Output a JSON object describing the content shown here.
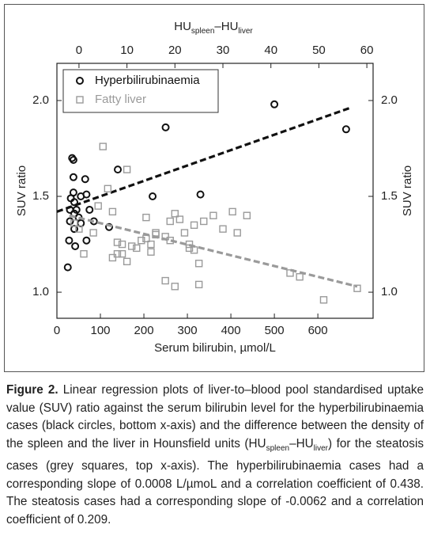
{
  "chart_data": {
    "type": "scatter",
    "xlabel": "Serum bilirubin, µmol/L",
    "x2label": [
      {
        "text": "HU"
      },
      {
        "text": "spleen",
        "sub": true
      },
      {
        "text": "–HU"
      },
      {
        "text": "liver",
        "sub": true
      }
    ],
    "ylabel": "SUV ratio",
    "xlim": [
      0,
      727
    ],
    "xticks": [
      0,
      100,
      200,
      300,
      400,
      500,
      600
    ],
    "x2lim": [
      -4.6,
      61.3
    ],
    "x2ticks": [
      0,
      10,
      20,
      30,
      40,
      50,
      60
    ],
    "ylim": [
      0.864,
      2.194
    ],
    "yticks": [
      {
        "value": 1,
        "label": "1.0"
      },
      {
        "value": 1.5,
        "label": "1.5"
      },
      {
        "value": 2,
        "label": "2.0"
      }
    ],
    "legend": "top-left",
    "series": [
      {
        "name": "Hyperbilirubinaemia",
        "color": "#111111",
        "marker": "circle",
        "xaxis": "x",
        "x": [
          25,
          28,
          30,
          30,
          32,
          35,
          38,
          38,
          38,
          40,
          40,
          40,
          42,
          45,
          50,
          55,
          55,
          65,
          68,
          68,
          75,
          85,
          120,
          140,
          220,
          250,
          330,
          500,
          665
        ],
        "values": [
          1.13,
          1.27,
          1.37,
          1.43,
          1.49,
          1.7,
          1.69,
          1.6,
          1.52,
          1.47,
          1.41,
          1.33,
          1.24,
          1.43,
          1.39,
          1.36,
          1.5,
          1.59,
          1.51,
          1.27,
          1.43,
          1.37,
          1.34,
          1.64,
          1.5,
          1.86,
          1.51,
          1.98,
          1.85
        ],
        "trend": {
          "x": [
            0,
            672
          ],
          "values": [
            1.42,
            1.96
          ]
        }
      },
      {
        "name": "Fatty liver",
        "color": "#9a9a9a",
        "marker": "square",
        "xaxis": "x2",
        "x": [
          -1,
          0,
          1,
          3,
          4,
          5,
          6,
          7,
          7,
          8,
          8,
          9,
          9,
          10,
          10,
          11,
          12,
          13,
          14,
          14,
          15,
          15,
          16,
          16,
          18,
          18,
          19,
          19,
          20,
          20,
          21,
          22,
          23,
          23,
          24,
          24,
          25,
          25,
          26,
          28,
          30,
          32,
          33,
          35,
          44,
          46,
          51,
          58
        ],
        "values": [
          1.36,
          1.33,
          1.2,
          1.31,
          1.45,
          1.76,
          1.54,
          1.18,
          1.42,
          1.2,
          1.26,
          1.2,
          1.25,
          1.64,
          1.16,
          1.24,
          1.23,
          1.27,
          1.28,
          1.39,
          1.25,
          1.21,
          1.31,
          1.3,
          1.29,
          1.06,
          1.27,
          1.37,
          1.03,
          1.41,
          1.38,
          1.31,
          1.25,
          1.23,
          1.22,
          1.35,
          1.04,
          1.15,
          1.37,
          1.4,
          1.33,
          1.42,
          1.31,
          1.4,
          1.1,
          1.08,
          0.96,
          1.02
        ],
        "trend": {
          "x": [
            -2,
            58
          ],
          "values": [
            1.4,
            1.03
          ]
        }
      }
    ]
  },
  "caption": {
    "label": "Figure 2.",
    "parts": [
      {
        "text": " Linear regression plots of liver-to–blood pool standardised uptake value (SUV) ratio against the serum bilirubin level for the hyperbilirubinaemia cases (black circles, bottom x-axis) and the difference between the density of the spleen and the liver in Hounsfield units (HU"
      },
      {
        "text": "spleen",
        "sub": true
      },
      {
        "text": "–HU"
      },
      {
        "text": "liver",
        "sub": true
      },
      {
        "text": ") for the steatosis cases (grey squares, top x-axis). The hyperbilirubinaemia cases had a corresponding slope of 0.0008 L/µmoL and a correlation coefficient of 0.438. The steatosis cases had a corresponding slope of -0.0062 and a correlation coefficient of 0.209."
      }
    ]
  }
}
